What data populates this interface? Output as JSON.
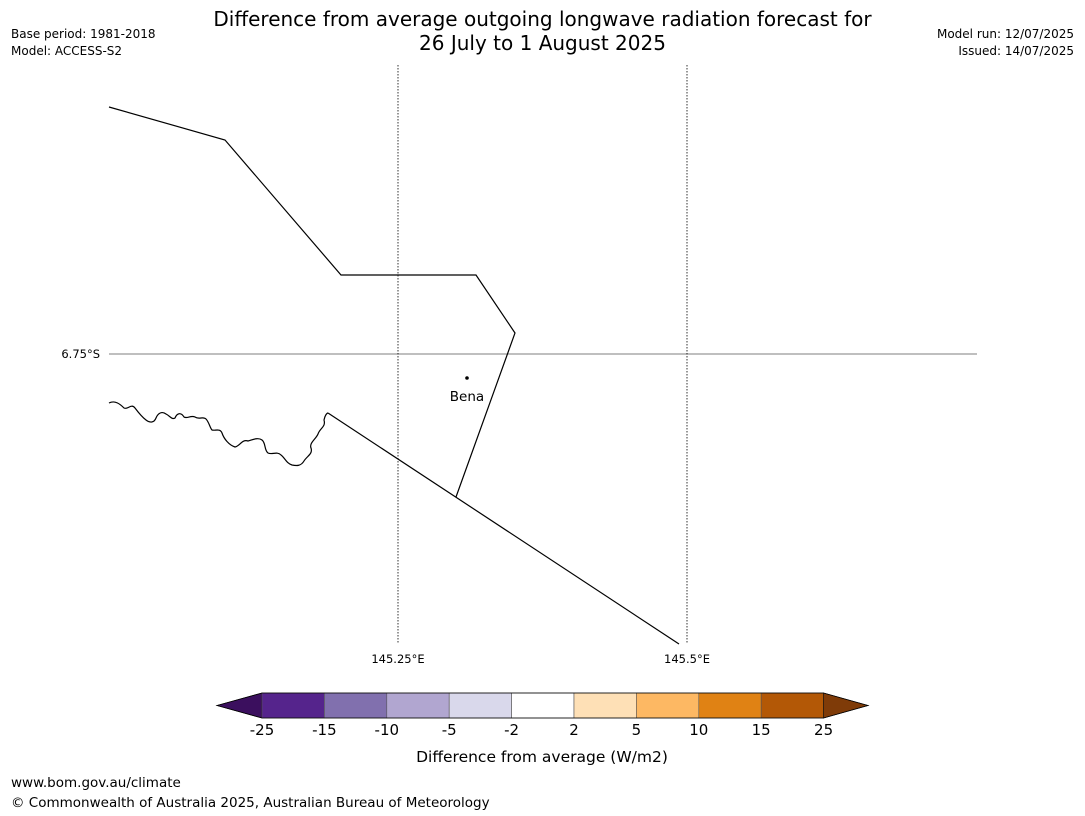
{
  "header": {
    "title_line1": "Difference from average outgoing longwave radiation forecast for",
    "title_line2": "26 July to 1 August 2025",
    "base_period": "Base period: 1981-2018",
    "model": "Model: ACCESS-S2",
    "model_run": "Model run: 12/07/2025",
    "issued": "Issued: 14/07/2025"
  },
  "map": {
    "lat_label": "6.75°S",
    "lon_labels": [
      "145.25°E",
      "145.5°E"
    ],
    "place": {
      "name": "Bena"
    }
  },
  "colorbar": {
    "label": "Difference from average (W/m2)",
    "ticks": [
      "-25",
      "-15",
      "-10",
      "-5",
      "-2",
      "2",
      "5",
      "10",
      "15",
      "25"
    ],
    "colors": [
      "#55248c",
      "#8170ae",
      "#b1a6d0",
      "#d9d8eb",
      "#ffffff",
      "#fee0b6",
      "#fdb863",
      "#e08214",
      "#b35806"
    ],
    "under_color": "#3b0f5e",
    "over_color": "#7f3b08"
  },
  "footer": {
    "url": "www.bom.gov.au/climate",
    "copyright": "© Commonwealth of Australia 2025, Australian Bureau of Meteorology"
  }
}
